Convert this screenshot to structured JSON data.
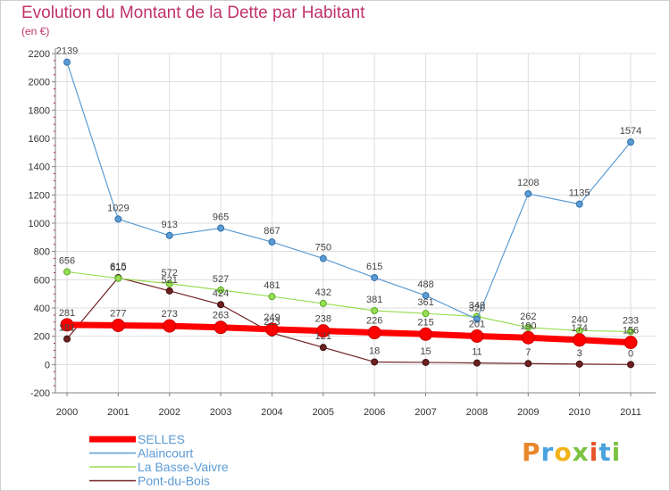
{
  "title": "Evolution du Montant de la Dette par Habitant",
  "unit_label": "(en €)",
  "logo": [
    "P",
    "r",
    "o",
    "x",
    "i",
    "t",
    "i"
  ],
  "colors": {
    "SELLES": "#ff0000",
    "Alaincourt": "#5b9bd5",
    "La Basse-Vaivre": "#99dd55",
    "Pont-du-Bois": "#702020",
    "axis": "#808080",
    "grid": "#dddddd",
    "tick_text": "#333333",
    "label_text": "#444444",
    "legend_text": "#5b9bd5"
  },
  "chart_data": {
    "type": "line",
    "title": "Evolution du Montant de la Dette par Habitant",
    "ylabel": "(en €)",
    "x": [
      "2000",
      "2001",
      "2002",
      "2003",
      "2004",
      "2005",
      "2006",
      "2007",
      "2008",
      "2009",
      "2010",
      "2011"
    ],
    "y_ticks": [
      "-200",
      "0",
      "200",
      "400",
      "600",
      "800",
      "1000",
      "1200",
      "1400",
      "1600",
      "1800",
      "2000",
      "2200"
    ],
    "ylim": [
      -200,
      2200
    ],
    "grid": true,
    "legend_position": "bottom-left",
    "series": [
      {
        "name": "SELLES",
        "values": [
          281,
          277,
          273,
          263,
          249,
          238,
          226,
          215,
          201,
          190,
          174,
          156
        ],
        "labels": [
          "281",
          "277",
          "273",
          "263",
          "249",
          "238",
          "226",
          "215",
          "201",
          "190",
          "174",
          "156"
        ]
      },
      {
        "name": "Alaincourt",
        "values": [
          2139,
          1029,
          913,
          965,
          867,
          750,
          615,
          488,
          320,
          1208,
          1135,
          1574
        ],
        "labels": [
          "2139",
          "1029",
          "913",
          "965",
          "867",
          "750",
          "615",
          "488",
          "320",
          "1208",
          "1135",
          "1574"
        ]
      },
      {
        "name": "La Basse-Vaivre",
        "values": [
          656,
          610,
          572,
          527,
          481,
          432,
          381,
          361,
          340,
          262,
          240,
          233
        ],
        "labels": [
          "656",
          "610",
          "572",
          "527",
          "481",
          "432",
          "381",
          "361",
          "340",
          "262",
          "240",
          "233"
        ]
      },
      {
        "name": "Pont-du-Bois",
        "values": [
          181,
          615,
          521,
          424,
          223,
          121,
          18,
          15,
          11,
          7,
          3,
          0
        ],
        "labels": [
          "181",
          "615",
          "521",
          "424",
          "223",
          "121",
          "18",
          "15",
          "11",
          "7",
          "3",
          "0"
        ]
      }
    ]
  }
}
